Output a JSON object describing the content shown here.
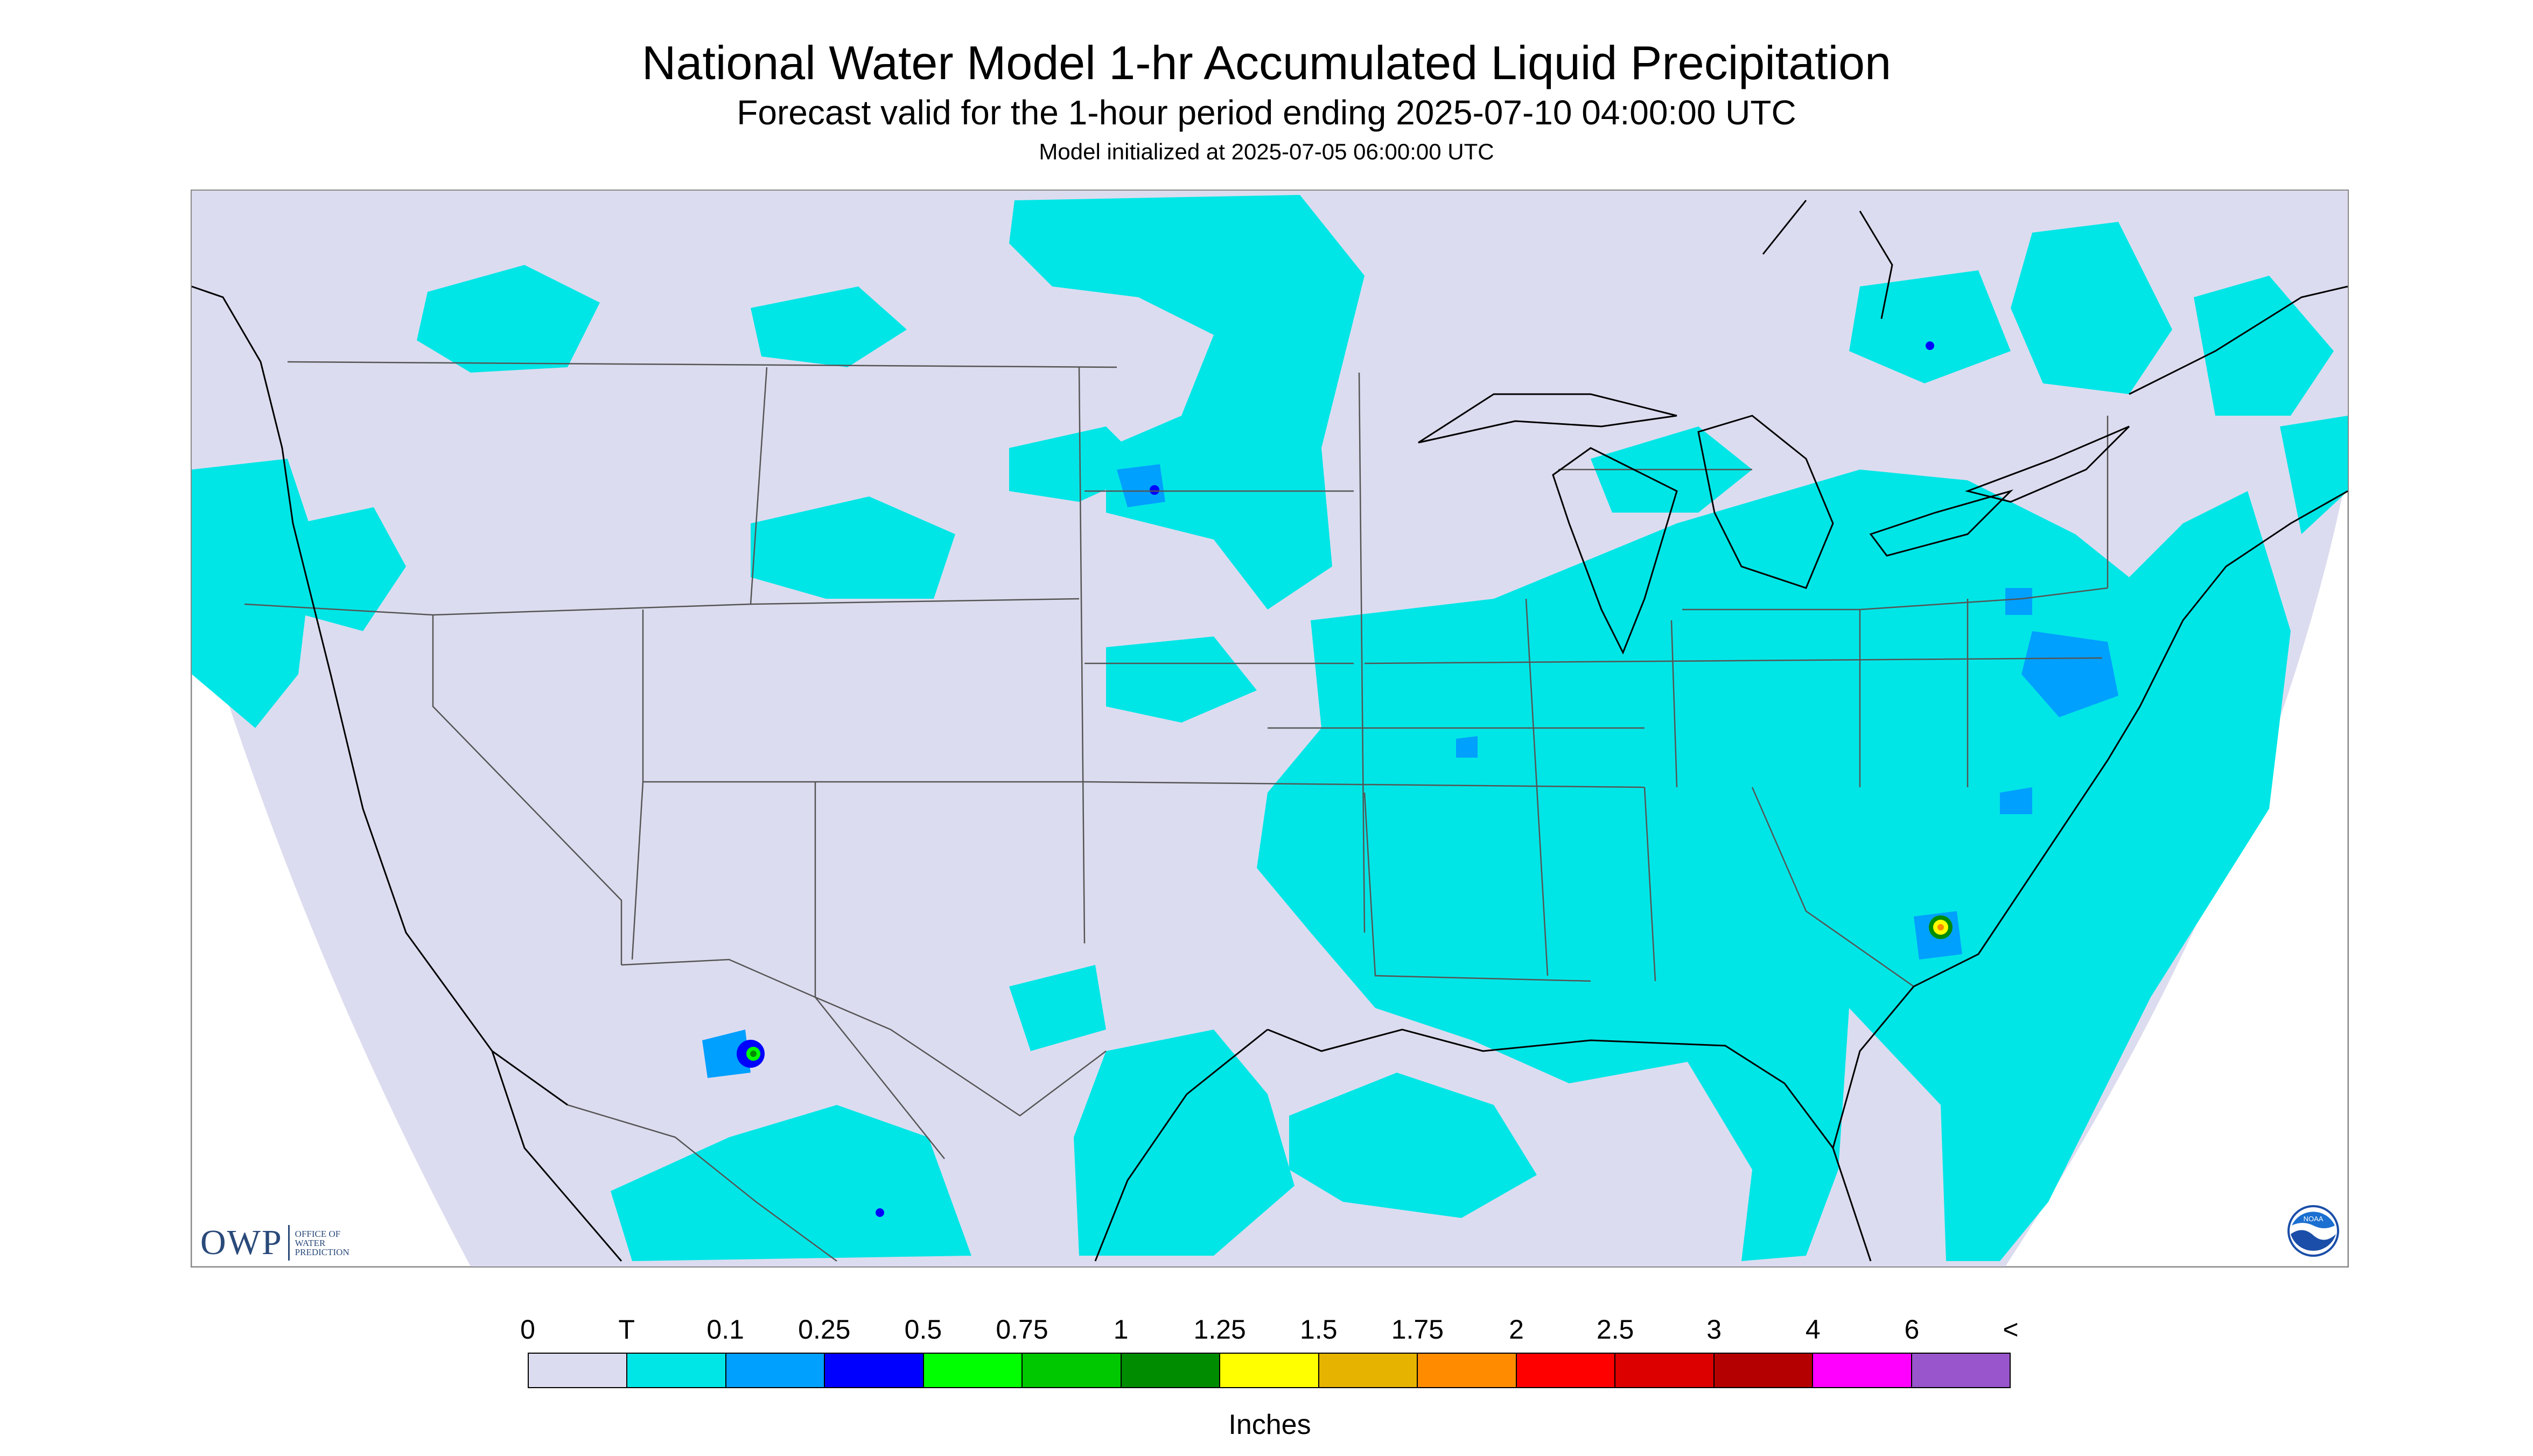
{
  "header": {
    "title": "National Water Model 1-hr Accumulated Liquid Precipitation",
    "subtitle": "Forecast valid for the 1-hour period ending 2025-07-10 04:00:00 UTC",
    "init": "Model initialized at 2025-07-05 06:00:00 UTC"
  },
  "logos": {
    "owp_mark": "OWP",
    "owp_lines": [
      "OFFICE OF",
      "WATER",
      "PREDICTION"
    ],
    "noaa_text": "NOAA"
  },
  "colors": {
    "background": "#dcdcf0",
    "light_rain": "#00e6e6",
    "state_lines": "#555555",
    "coast_lines": "#000000"
  },
  "legend": {
    "labels": [
      "0",
      "T",
      "0.1",
      "0.25",
      "0.5",
      "0.75",
      "1",
      "1.25",
      "1.5",
      "1.75",
      "2",
      "2.5",
      "3",
      "4",
      "6",
      "<"
    ],
    "colors": [
      "#dcdcf0",
      "#00e6e6",
      "#00a0ff",
      "#0000ff",
      "#00ff00",
      "#00c800",
      "#008c00",
      "#ffff00",
      "#e6b400",
      "#ff8c00",
      "#ff0000",
      "#dc0000",
      "#b40000",
      "#ff00ff",
      "#9955cc"
    ],
    "units": "Inches"
  }
}
